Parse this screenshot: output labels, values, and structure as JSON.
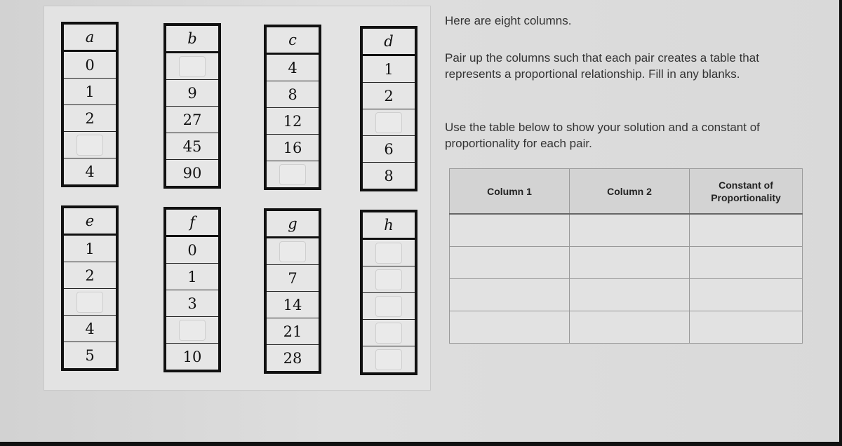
{
  "columns": [
    {
      "label": "a",
      "values": [
        "0",
        "1",
        "2",
        "",
        "4"
      ]
    },
    {
      "label": "b",
      "values": [
        "",
        "9",
        "27",
        "45",
        "90"
      ]
    },
    {
      "label": "c",
      "values": [
        "4",
        "8",
        "12",
        "16",
        ""
      ]
    },
    {
      "label": "d",
      "values": [
        "1",
        "2",
        "",
        "6",
        "8"
      ]
    },
    {
      "label": "e",
      "values": [
        "1",
        "2",
        "",
        "4",
        "5"
      ]
    },
    {
      "label": "f",
      "values": [
        "0",
        "1",
        "3",
        "",
        "10"
      ]
    },
    {
      "label": "g",
      "values": [
        "",
        "7",
        "14",
        "21",
        "28"
      ]
    },
    {
      "label": "h",
      "values": [
        "",
        "",
        "",
        "",
        ""
      ]
    }
  ],
  "instructions": {
    "intro": "Here are eight columns.",
    "task": "Pair up the columns such that each pair creates a table that represents a proportional relationship. Fill in any blanks.",
    "table_note": "Use the table below to show your solution and a constant of proportionality for each pair."
  },
  "answer_table": {
    "headers": [
      "Column 1",
      "Column 2",
      "Constant of Proportionality"
    ],
    "row_count": 4
  }
}
